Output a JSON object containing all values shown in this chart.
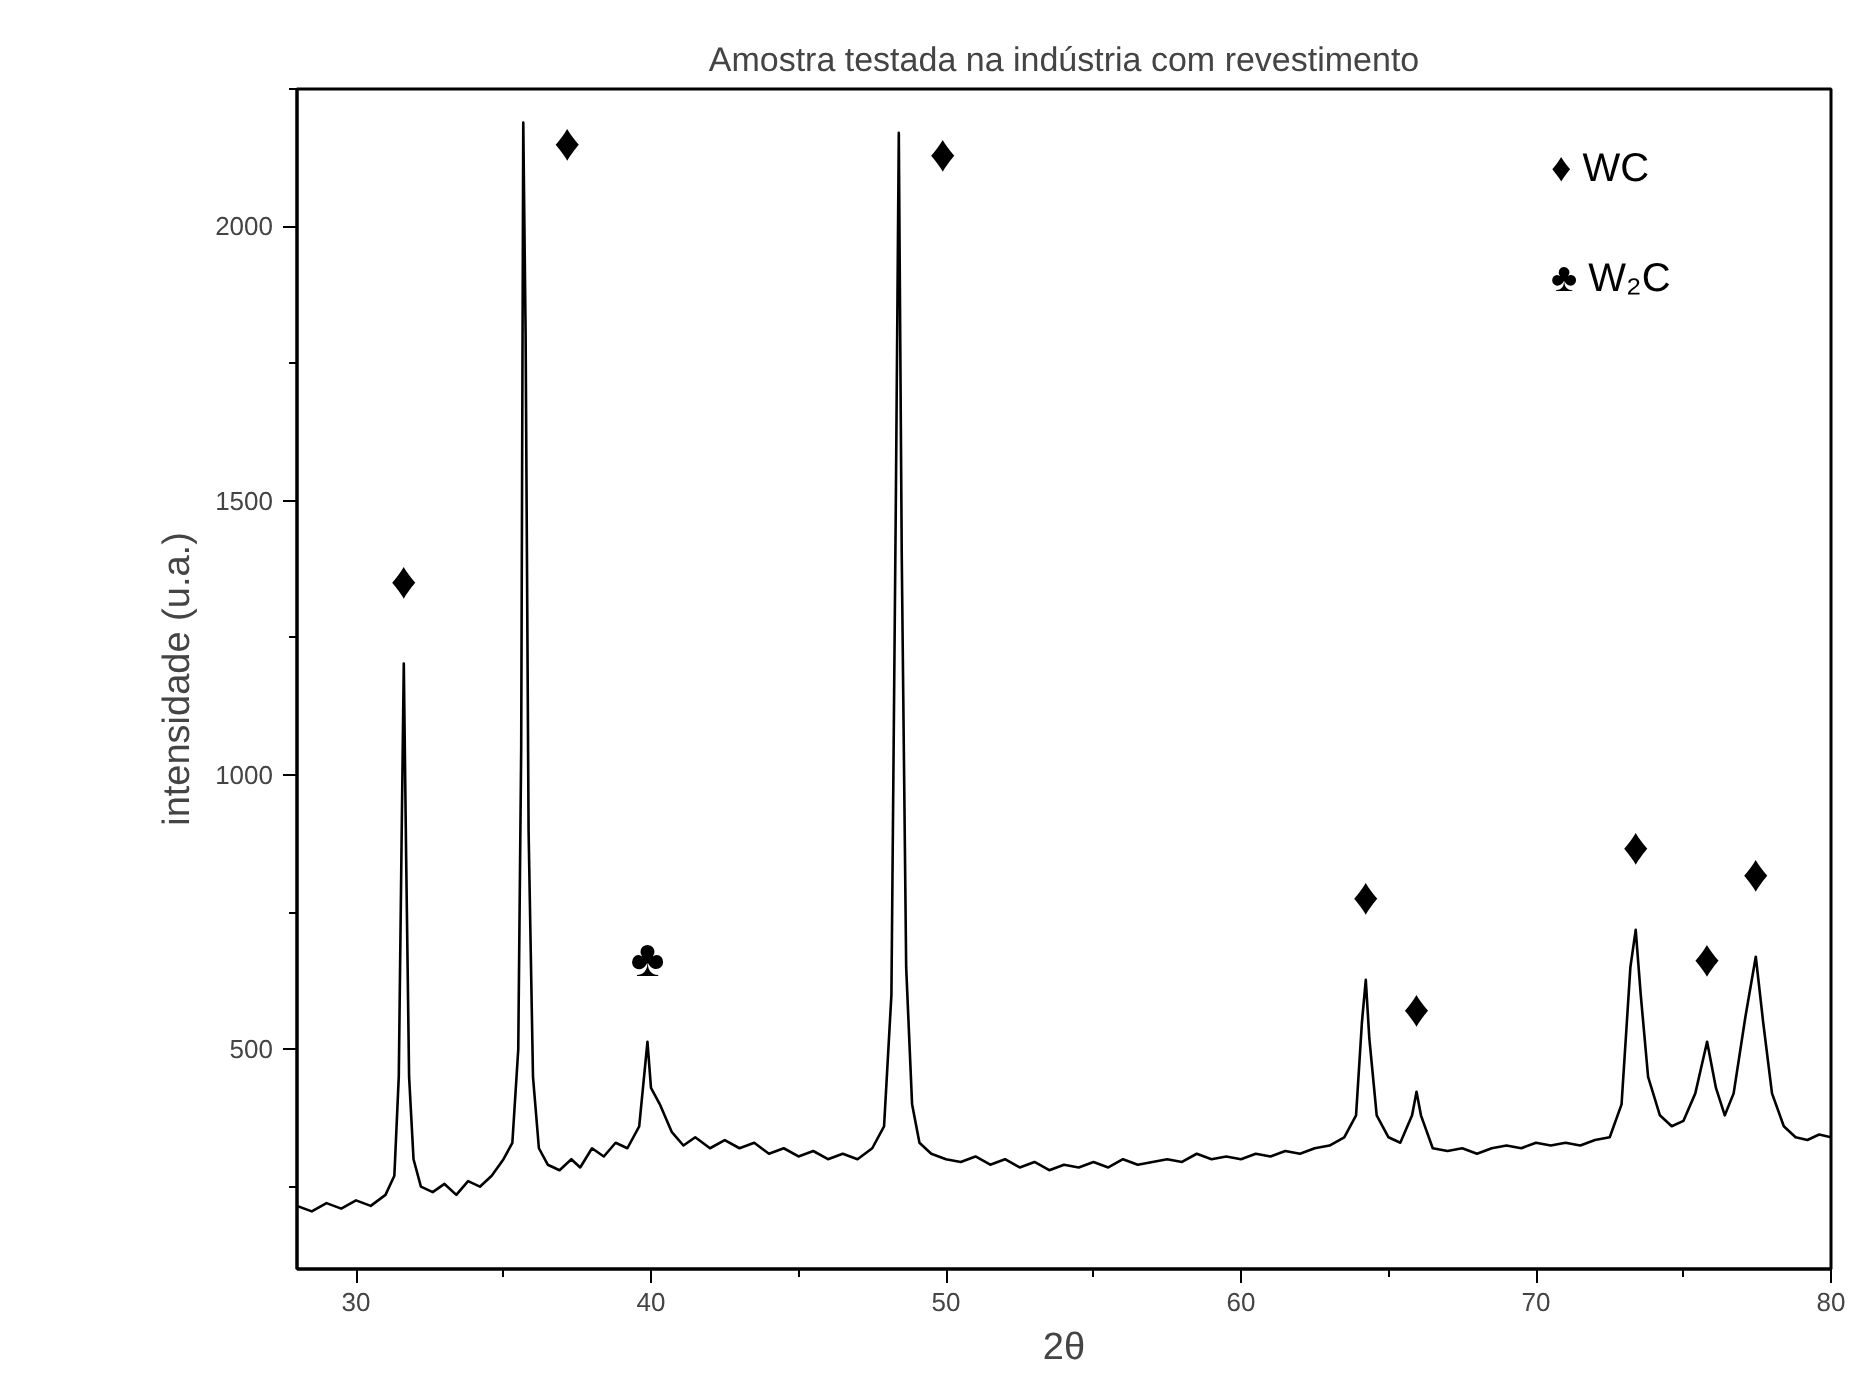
{
  "chart_data": {
    "type": "line",
    "title": "Amostra testada na indústria com revestimento",
    "xlabel": "2θ",
    "ylabel": "intensidade (u.a.)",
    "xlim": [
      28,
      80
    ],
    "ylim": [
      100,
      2250
    ],
    "xticks": [
      30,
      40,
      50,
      60,
      70,
      80
    ],
    "yticks": [
      500,
      1000,
      1500,
      2000
    ],
    "grid": false,
    "series": [
      {
        "color": "#000000",
        "x": [
          28.0,
          28.5,
          29.0,
          29.5,
          30.0,
          30.5,
          31.0,
          31.3,
          31.45,
          31.55,
          31.62,
          31.7,
          31.8,
          31.95,
          32.2,
          32.6,
          33.0,
          33.4,
          33.8,
          34.2,
          34.6,
          35.0,
          35.3,
          35.5,
          35.6,
          35.67,
          35.75,
          35.85,
          36.0,
          36.2,
          36.5,
          36.9,
          37.3,
          37.6,
          38.0,
          38.4,
          38.8,
          39.2,
          39.6,
          39.88,
          40.0,
          40.3,
          40.7,
          41.1,
          41.5,
          42.0,
          42.5,
          43.0,
          43.5,
          44.0,
          44.5,
          45.0,
          45.5,
          46.0,
          46.5,
          47.0,
          47.5,
          47.9,
          48.15,
          48.3,
          48.4,
          48.5,
          48.65,
          48.85,
          49.1,
          49.5,
          50.0,
          50.5,
          51.0,
          51.5,
          52.0,
          52.5,
          53.0,
          53.5,
          54.0,
          54.5,
          55.0,
          55.5,
          56.0,
          56.5,
          57.0,
          57.5,
          58.0,
          58.5,
          59.0,
          59.5,
          60.0,
          60.5,
          61.0,
          61.5,
          62.0,
          62.5,
          63.0,
          63.5,
          63.9,
          64.1,
          64.23,
          64.35,
          64.6,
          65.0,
          65.4,
          65.8,
          65.95,
          66.1,
          66.5,
          67.0,
          67.5,
          68.0,
          68.5,
          69.0,
          69.5,
          70.0,
          70.5,
          71.0,
          71.5,
          72.0,
          72.5,
          72.9,
          73.2,
          73.38,
          73.55,
          73.8,
          74.2,
          74.6,
          75.0,
          75.4,
          75.8,
          76.1,
          76.4,
          76.7,
          77.1,
          77.45,
          77.7,
          78.0,
          78.4,
          78.8,
          79.2,
          79.6,
          80.0
        ],
        "values": [
          215,
          205,
          220,
          210,
          225,
          215,
          235,
          270,
          450,
          900,
          1203,
          850,
          450,
          300,
          250,
          240,
          255,
          235,
          260,
          250,
          270,
          300,
          330,
          500,
          1050,
          2189,
          1800,
          900,
          450,
          320,
          290,
          280,
          300,
          285,
          320,
          305,
          330,
          320,
          360,
          514,
          430,
          400,
          350,
          325,
          340,
          320,
          335,
          320,
          330,
          310,
          320,
          305,
          315,
          300,
          310,
          300,
          320,
          360,
          600,
          1500,
          2170,
          1400,
          650,
          400,
          330,
          310,
          300,
          295,
          305,
          290,
          300,
          285,
          295,
          280,
          290,
          285,
          295,
          285,
          300,
          290,
          295,
          300,
          295,
          310,
          300,
          305,
          300,
          310,
          305,
          315,
          310,
          320,
          325,
          340,
          380,
          550,
          627,
          520,
          380,
          340,
          330,
          380,
          423,
          380,
          320,
          315,
          320,
          310,
          320,
          325,
          320,
          330,
          325,
          330,
          325,
          335,
          340,
          400,
          650,
          718,
          600,
          450,
          380,
          360,
          370,
          420,
          514,
          430,
          380,
          420,
          560,
          669,
          550,
          420,
          360,
          340,
          335,
          345,
          340
        ]
      }
    ],
    "annotations": [
      {
        "text": "♦",
        "x": 31.62,
        "y": 1203
      },
      {
        "text": "♦",
        "x": 35.67,
        "y": 2189
      },
      {
        "text": "♦",
        "x": 48.4,
        "y": 2170
      },
      {
        "text": "♣",
        "x": 39.88,
        "y": 514
      },
      {
        "text": "♦",
        "x": 64.23,
        "y": 627
      },
      {
        "text": "♦",
        "x": 65.95,
        "y": 423
      },
      {
        "text": "♦",
        "x": 73.38,
        "y": 718
      },
      {
        "text": "♦",
        "x": 75.8,
        "y": 514
      },
      {
        "text": "♦",
        "x": 77.45,
        "y": 669
      },
      "♦ WC",
      "♣ W₂C"
    ]
  }
}
